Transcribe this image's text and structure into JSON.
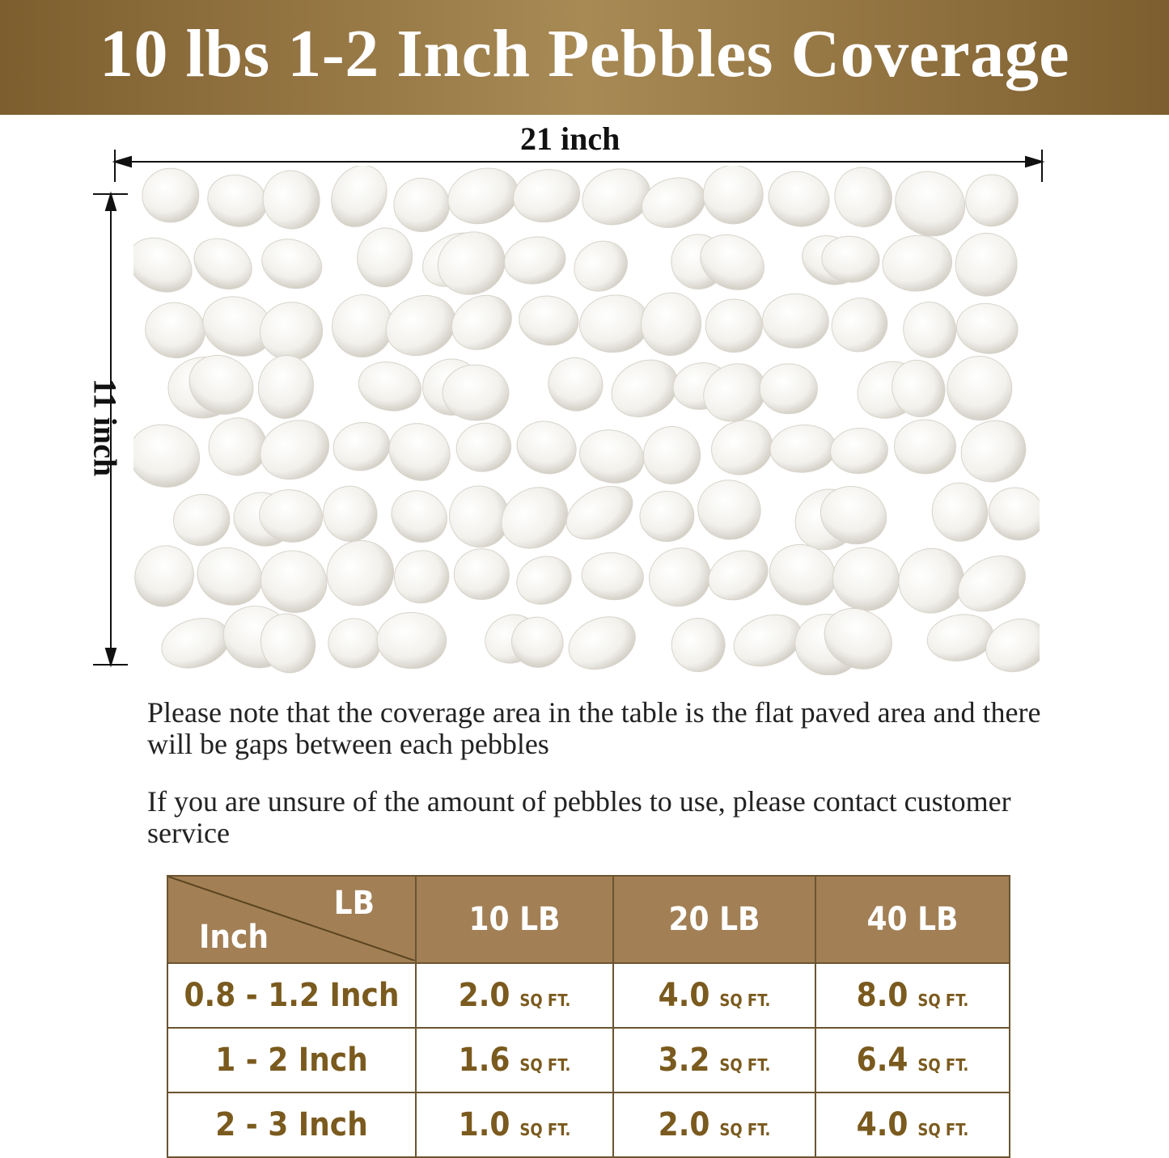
{
  "title": "10 lbs 1-2 Inch Pebbles Coverage",
  "dimensions": {
    "width": "21 inch",
    "height": "11 inch"
  },
  "notes": [
    "Please note that the coverage area in the table is the flat paved area and there will be gaps between each pebbles",
    "If you are unsure of the amount of pebbles to use, please contact customer service"
  ],
  "table": {
    "corner": {
      "top": "LB",
      "bottom": "Inch"
    },
    "columns": [
      "10 LB",
      "20 LB",
      "40 LB"
    ],
    "unit": "SQ FT.",
    "rows": [
      {
        "size": "0.8 - 1.2 Inch",
        "values": [
          "2.0",
          "4.0",
          "8.0"
        ]
      },
      {
        "size": "1 - 2 Inch",
        "values": [
          "1.6",
          "3.2",
          "6.4"
        ]
      },
      {
        "size": "2 - 3 Inch",
        "values": [
          "1.0",
          "2.0",
          "4.0"
        ]
      }
    ]
  },
  "colors": {
    "banner": "#9a7b48",
    "header": "#a27f55",
    "value_text": "#7a5a1e"
  }
}
